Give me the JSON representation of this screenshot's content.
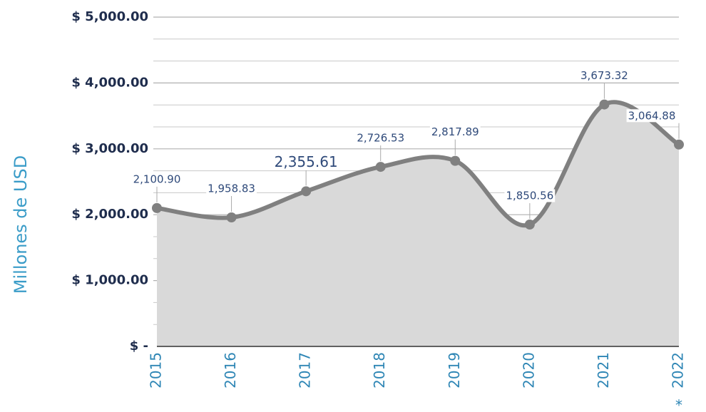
{
  "chart_data": {
    "type": "area-line",
    "y_label": "Millones de USD",
    "categories": [
      "2015",
      "2016",
      "2017",
      "2018",
      "2019",
      "2020",
      "2021",
      "2022"
    ],
    "footnote_mark": "*",
    "values": [
      2100.9,
      1958.83,
      2355.61,
      2726.53,
      2817.89,
      1850.56,
      3673.32,
      3064.88
    ],
    "value_labels": [
      "2,100.90",
      "1,958.83",
      "2,355.61",
      "2,726.53",
      "2,817.89",
      "1,850.56",
      "3,673.32",
      "3,064.88"
    ],
    "color": "#808080",
    "fill": "#d9d9d9",
    "ylim": [
      0,
      5000
    ],
    "yticks": [
      {
        "value": 0,
        "label": "$ -"
      },
      {
        "value": 1000,
        "label": "$ 1,000.00"
      },
      {
        "value": 2000,
        "label": "$ 2,000.00"
      },
      {
        "value": 3000,
        "label": "$ 3,000.00"
      },
      {
        "value": 4000,
        "label": "$ 4,000.00"
      },
      {
        "value": 5000,
        "label": "$ 5,000.00"
      }
    ],
    "grid": true
  }
}
